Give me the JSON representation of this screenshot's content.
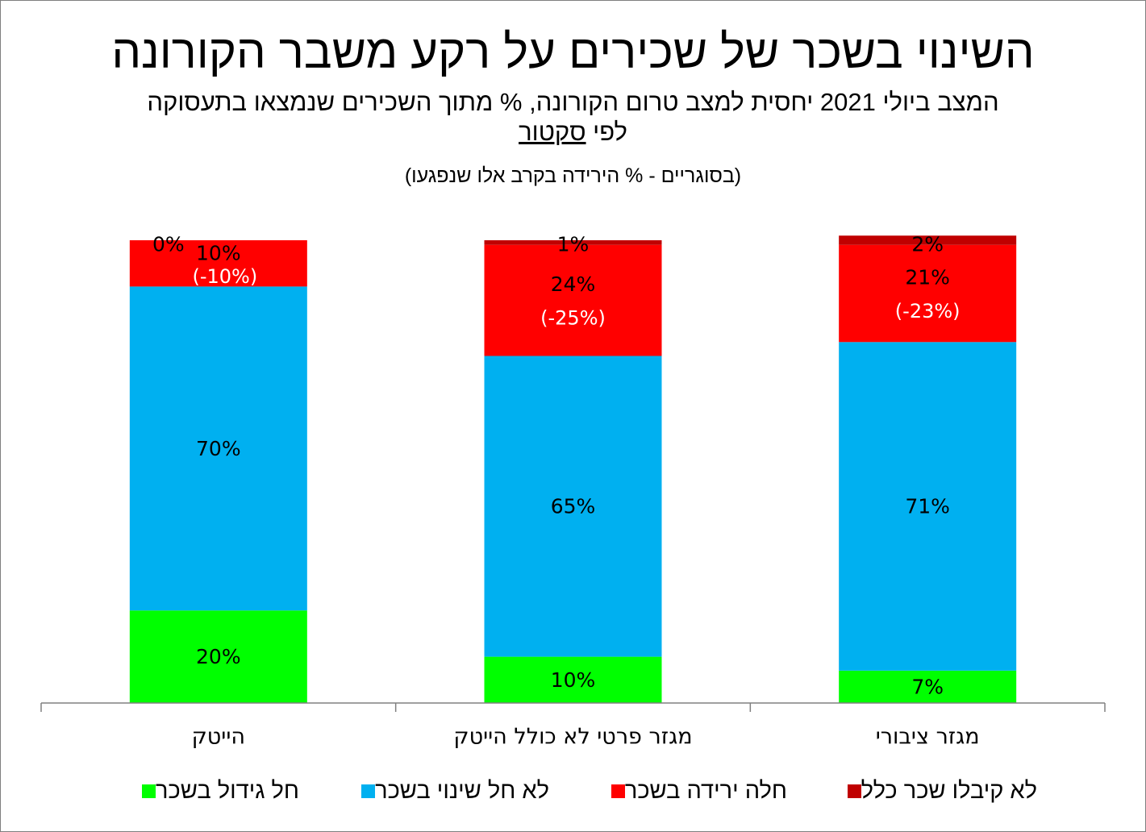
{
  "chart_data": {
    "type": "bar",
    "stacked": true,
    "title": "השינוי בשכר של שכירים על רקע משבר הקורונה",
    "subtitle_line1": "המצב ביולי 2021 יחסית למצב טרום הקורונה, % מתוך השכירים שנמצאו בתעסוקה",
    "subtitle_line2_prefix": "לפי ",
    "subtitle_line2_underlined": "סקטור",
    "note": "(בסוגריים - % הירידה בקרב אלו שנפגעו)",
    "categories": [
      "הייטק",
      "מגזר פרטי לא כולל הייטק",
      "מגזר ציבורי"
    ],
    "series": [
      {
        "name": "חל גידול בשכר",
        "color": "#00ff00",
        "values": [
          20,
          10,
          7
        ],
        "labels": [
          "20%",
          "10%",
          "7%"
        ]
      },
      {
        "name": "לא חל שינוי בשכר",
        "color": "#00b0f0",
        "values": [
          70,
          65,
          71
        ],
        "labels": [
          "70%",
          "65%",
          "71%"
        ]
      },
      {
        "name": "חלה ירידה בשכר",
        "color": "#ff0000",
        "values": [
          10,
          24,
          21
        ],
        "labels": [
          "10%",
          "24%",
          "21%"
        ]
      },
      {
        "name": "לא קיבלו שכר כלל",
        "color": "#c00000",
        "values": [
          0,
          1,
          2
        ],
        "labels": [
          "0%",
          "1%",
          "2%"
        ]
      }
    ],
    "decline_annotations": [
      "(-10%)",
      "(-25%)",
      "(-23%)"
    ],
    "ylim": [
      0,
      100
    ],
    "grid": false,
    "legend_position": "bottom"
  }
}
